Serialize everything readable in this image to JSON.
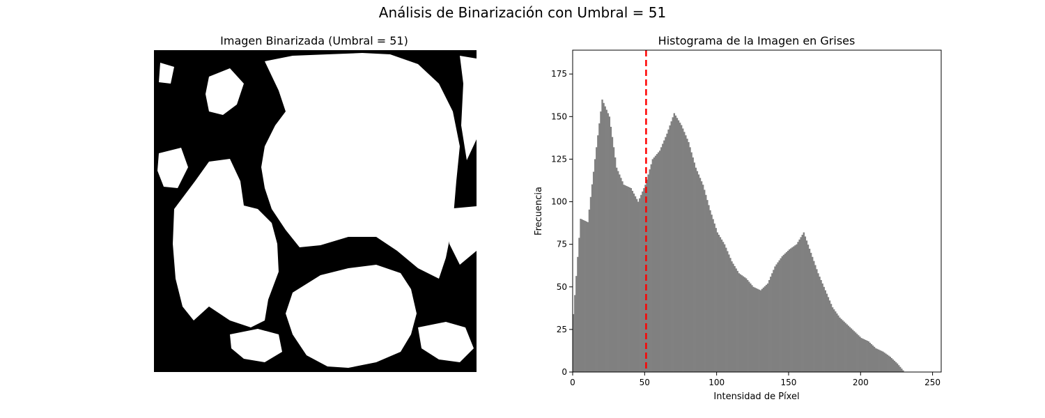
{
  "figure": {
    "suptitle": "Análisis de Binarización con Umbral = 51"
  },
  "chart_data": [
    {
      "type": "image",
      "title": "Imagen Binarizada (Umbral = 51)",
      "colors": {
        "foreground": "#ffffff",
        "background": "#000000"
      }
    },
    {
      "type": "bar",
      "title": "Histograma de la Imagen en Grises",
      "xlabel": "Intensidad de Píxel",
      "ylabel": "Frecuencia",
      "xlim": [
        0,
        256
      ],
      "ylim": [
        0,
        189
      ],
      "xticks": [
        0,
        50,
        100,
        150,
        200,
        250
      ],
      "yticks": [
        0,
        25,
        50,
        75,
        100,
        125,
        150,
        175
      ],
      "bar_color": "#808080",
      "threshold": {
        "value": 51,
        "color": "#ff0000",
        "style": "dashed"
      },
      "bins": [
        [
          0,
          34
        ],
        [
          5,
          90
        ],
        [
          10,
          88
        ],
        [
          15,
          125
        ],
        [
          20,
          160
        ],
        [
          25,
          150
        ],
        [
          30,
          120
        ],
        [
          35,
          110
        ],
        [
          40,
          108
        ],
        [
          45,
          100
        ],
        [
          50,
          110
        ],
        [
          55,
          125
        ],
        [
          60,
          130
        ],
        [
          65,
          140
        ],
        [
          70,
          152
        ],
        [
          75,
          145
        ],
        [
          80,
          135
        ],
        [
          85,
          120
        ],
        [
          90,
          110
        ],
        [
          95,
          95
        ],
        [
          100,
          82
        ],
        [
          105,
          75
        ],
        [
          110,
          65
        ],
        [
          115,
          58
        ],
        [
          120,
          55
        ],
        [
          125,
          50
        ],
        [
          130,
          48
        ],
        [
          135,
          52
        ],
        [
          140,
          62
        ],
        [
          145,
          68
        ],
        [
          150,
          72
        ],
        [
          155,
          75
        ],
        [
          160,
          82
        ],
        [
          165,
          70
        ],
        [
          170,
          58
        ],
        [
          175,
          48
        ],
        [
          180,
          38
        ],
        [
          185,
          32
        ],
        [
          190,
          28
        ],
        [
          195,
          24
        ],
        [
          200,
          20
        ],
        [
          205,
          18
        ],
        [
          210,
          14
        ],
        [
          215,
          12
        ],
        [
          220,
          9
        ],
        [
          225,
          5
        ],
        [
          229,
          1
        ]
      ]
    }
  ]
}
